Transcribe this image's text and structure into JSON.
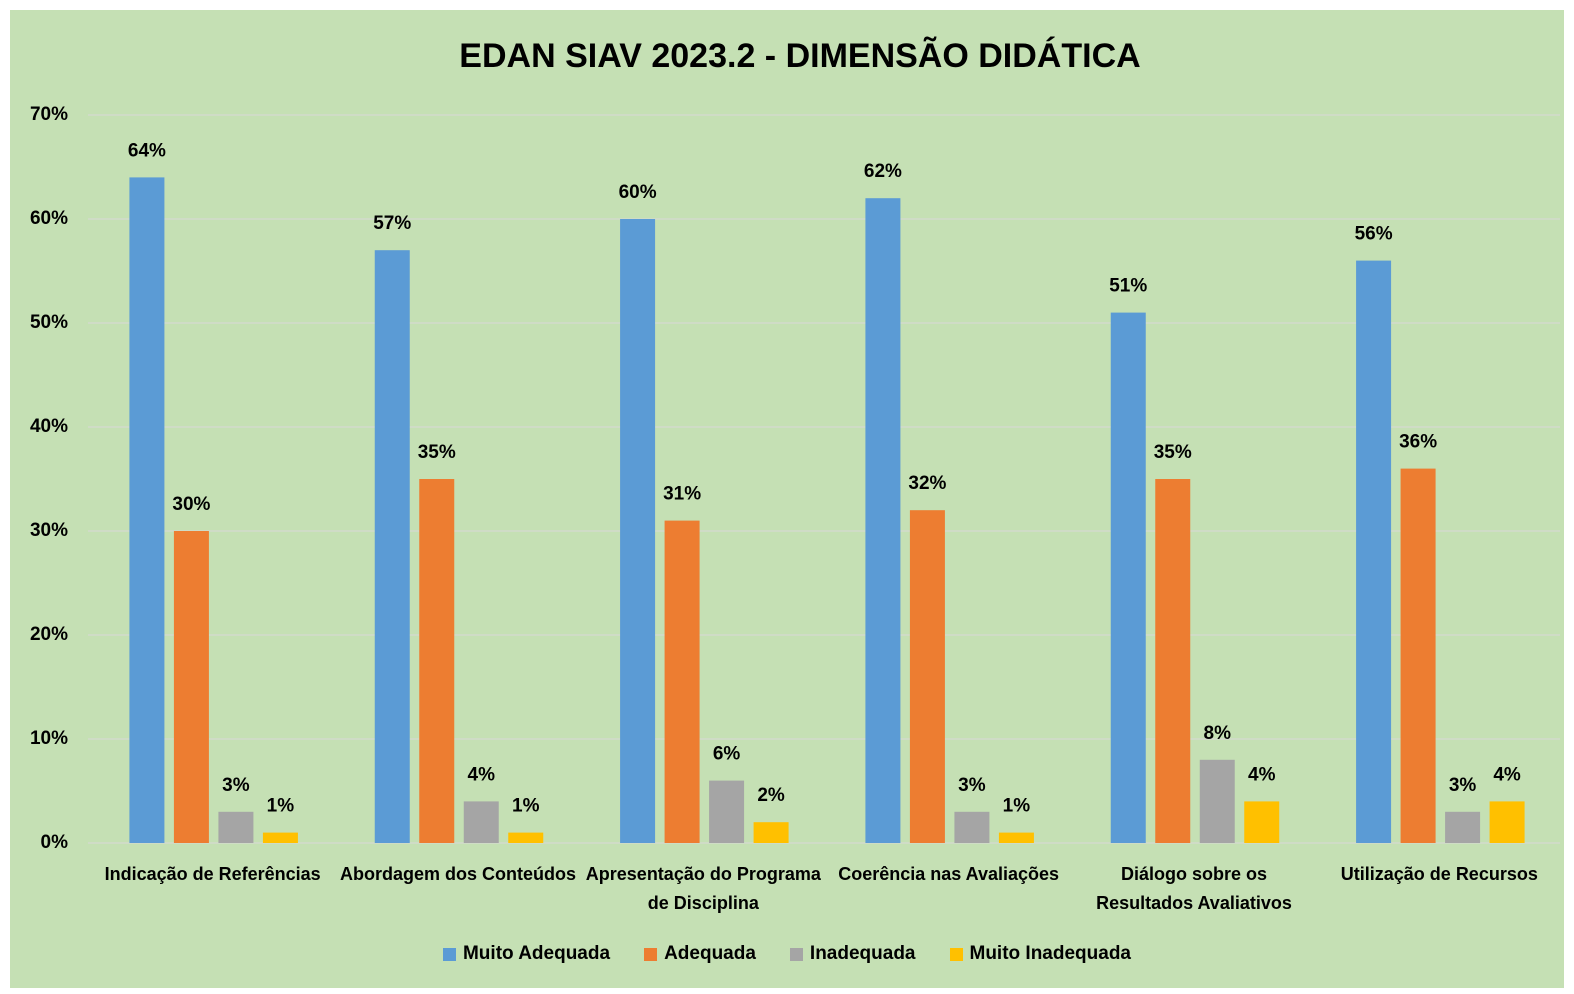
{
  "chart_data": {
    "type": "bar",
    "title": "EDAN SIAV 2023.2 - DIMENSÃO DIDÁTICA",
    "categories": [
      "Indicação de Referências",
      "Abordagem dos Conteúdos",
      "Apresentação do Programa de Disciplina",
      "Coerência nas Avaliações",
      "Diálogo sobre os Resultados Avaliativos",
      "Utilização de Recursos"
    ],
    "series": [
      {
        "name": "Muito Adequada",
        "color": "#5b9bd5",
        "values": [
          64,
          57,
          60,
          62,
          51,
          56
        ],
        "value_labels": [
          "64%",
          "57%",
          "60%",
          "62%",
          "51%",
          "56%"
        ]
      },
      {
        "name": "Adequada",
        "color": "#ed7d31",
        "values": [
          30,
          35,
          31,
          32,
          35,
          36
        ],
        "value_labels": [
          "30%",
          "35%",
          "31%",
          "32%",
          "35%",
          "36%"
        ]
      },
      {
        "name": "Inadequada",
        "color": "#a5a5a5",
        "values": [
          3,
          4,
          6,
          3,
          8,
          3
        ],
        "value_labels": [
          "3%",
          "4%",
          "6%",
          "3%",
          "8%",
          "3%"
        ]
      },
      {
        "name": "Muito Inadequada",
        "color": "#ffc000",
        "values": [
          1,
          1,
          2,
          1,
          4,
          4
        ],
        "value_labels": [
          "1%",
          "1%",
          "2%",
          "1%",
          "4%",
          "4%"
        ]
      }
    ],
    "ylim": [
      0,
      70
    ],
    "yticks": [
      {
        "value": 0,
        "label": "0%"
      },
      {
        "value": 10,
        "label": "10%"
      },
      {
        "value": 20,
        "label": "20%"
      },
      {
        "value": 30,
        "label": "30%"
      },
      {
        "value": 40,
        "label": "40%"
      },
      {
        "value": 50,
        "label": "50%"
      },
      {
        "value": 60,
        "label": "60%"
      },
      {
        "value": 70,
        "label": "70%"
      }
    ],
    "grid": true,
    "legend": "bottom"
  }
}
